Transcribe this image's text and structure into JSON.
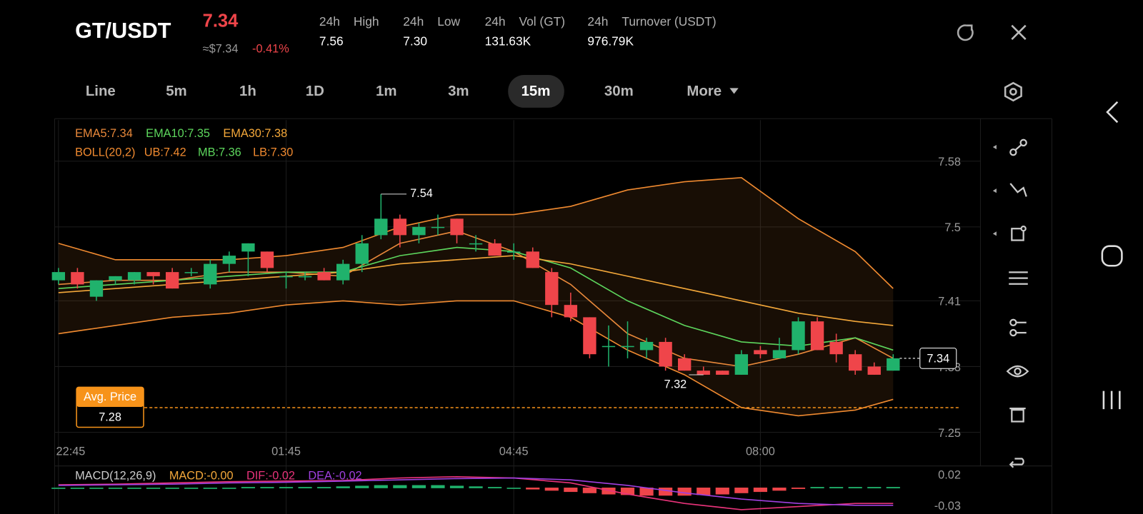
{
  "header": {
    "pair": "GT/USDT",
    "price": "7.34",
    "usd_price": "≈$7.34",
    "change": "-0.41%",
    "stats": [
      {
        "period": "24h",
        "label": "High",
        "value": "7.56"
      },
      {
        "period": "24h",
        "label": "Low",
        "value": "7.30"
      },
      {
        "period": "24h",
        "label": "Vol (GT)",
        "value": "131.63K"
      },
      {
        "period": "24h",
        "label": "Turnover (USDT)",
        "value": "976.79K"
      }
    ]
  },
  "timeframes": {
    "items": [
      "Line",
      "5m",
      "1h",
      "1D",
      "1m",
      "3m",
      "15m",
      "30m",
      "More"
    ],
    "active": "15m"
  },
  "chart_data": {
    "type": "candlestick",
    "up_color": "#20b26c",
    "down_color": "#ef454a",
    "ylim": [
      7.24,
      7.63
    ],
    "yticks": [
      7.25,
      7.33,
      7.41,
      7.5,
      7.58
    ],
    "grid": true,
    "xlim": [
      -0.2,
      48.6
    ],
    "xticks": [
      {
        "value": 0,
        "label": "22:45"
      },
      {
        "value": 12,
        "label": "01:45"
      },
      {
        "value": 24,
        "label": "04:45"
      },
      {
        "value": 37,
        "label": "08:00"
      }
    ],
    "candles": [
      [
        7.435,
        7.45,
        7.43,
        7.445
      ],
      [
        7.445,
        7.45,
        7.425,
        7.43
      ],
      [
        7.415,
        7.435,
        7.41,
        7.435
      ],
      [
        7.435,
        7.44,
        7.43,
        7.44
      ],
      [
        7.435,
        7.445,
        7.43,
        7.445
      ],
      [
        7.445,
        7.445,
        7.43,
        7.44
      ],
      [
        7.445,
        7.45,
        7.425,
        7.425
      ],
      [
        7.445,
        7.45,
        7.44,
        7.445
      ],
      [
        7.43,
        7.46,
        7.425,
        7.455
      ],
      [
        7.455,
        7.47,
        7.445,
        7.465
      ],
      [
        7.47,
        7.48,
        7.44,
        7.48
      ],
      [
        7.47,
        7.47,
        7.445,
        7.45
      ],
      [
        7.44,
        7.445,
        7.425,
        7.44
      ],
      [
        7.44,
        7.445,
        7.435,
        7.44
      ],
      [
        7.445,
        7.45,
        7.435,
        7.435
      ],
      [
        7.435,
        7.46,
        7.43,
        7.455
      ],
      [
        7.455,
        7.49,
        7.445,
        7.48
      ],
      [
        7.49,
        7.54,
        7.485,
        7.51
      ],
      [
        7.51,
        7.515,
        7.475,
        7.49
      ],
      [
        7.49,
        7.505,
        7.48,
        7.5
      ],
      [
        7.5,
        7.515,
        7.49,
        7.5
      ],
      [
        7.51,
        7.51,
        7.48,
        7.49
      ],
      [
        7.48,
        7.49,
        7.47,
        7.48
      ],
      [
        7.48,
        7.485,
        7.465,
        7.465
      ],
      [
        7.47,
        7.48,
        7.46,
        7.47
      ],
      [
        7.47,
        7.475,
        7.45,
        7.45
      ],
      [
        7.445,
        7.45,
        7.39,
        7.405
      ],
      [
        7.405,
        7.42,
        7.385,
        7.39
      ],
      [
        7.39,
        7.39,
        7.34,
        7.345
      ],
      [
        7.355,
        7.38,
        7.33,
        7.355
      ],
      [
        7.355,
        7.385,
        7.34,
        7.355
      ],
      [
        7.35,
        7.365,
        7.34,
        7.36
      ],
      [
        7.36,
        7.365,
        7.325,
        7.33
      ],
      [
        7.34,
        7.345,
        7.325,
        7.325
      ],
      [
        7.325,
        7.33,
        7.32,
        7.32
      ],
      [
        7.325,
        7.325,
        7.32,
        7.32
      ],
      [
        7.32,
        7.35,
        7.32,
        7.345
      ],
      [
        7.35,
        7.355,
        7.34,
        7.345
      ],
      [
        7.34,
        7.365,
        7.34,
        7.35
      ],
      [
        7.35,
        7.39,
        7.345,
        7.385
      ],
      [
        7.385,
        7.39,
        7.35,
        7.35
      ],
      [
        7.36,
        7.37,
        7.335,
        7.345
      ],
      [
        7.345,
        7.35,
        7.32,
        7.325
      ],
      [
        7.33,
        7.335,
        7.32,
        7.32
      ],
      [
        7.325,
        7.345,
        7.325,
        7.34
      ]
    ],
    "annotations": [
      {
        "index": 17,
        "value": 7.54
      },
      {
        "index": 34,
        "value": 7.32
      }
    ],
    "last_price": {
      "value": 7.34,
      "color": "#ffffff"
    },
    "avg_price": {
      "label": "Avg. Price",
      "value": 7.28,
      "color": "#f7931a"
    },
    "line_x": [
      0,
      3,
      6,
      9,
      12,
      15,
      18,
      21,
      24,
      27,
      30,
      33,
      36,
      39,
      42,
      44
    ],
    "ema": [
      {
        "name": "EMA5:7.34",
        "color": "#e8883a",
        "values": [
          7.43,
          7.435,
          7.435,
          7.445,
          7.445,
          7.44,
          7.48,
          7.495,
          7.47,
          7.43,
          7.37,
          7.34,
          7.33,
          7.345,
          7.365,
          7.34
        ]
      },
      {
        "name": "EMA10:7.35",
        "color": "#5dd65d",
        "values": [
          7.425,
          7.43,
          7.435,
          7.44,
          7.445,
          7.445,
          7.465,
          7.475,
          7.47,
          7.45,
          7.41,
          7.38,
          7.36,
          7.355,
          7.365,
          7.35
        ]
      },
      {
        "name": "EMA30:7.38",
        "color": "#f4a83a",
        "values": [
          7.42,
          7.425,
          7.43,
          7.435,
          7.44,
          7.445,
          7.455,
          7.46,
          7.465,
          7.455,
          7.44,
          7.425,
          7.41,
          7.395,
          7.385,
          7.38
        ]
      }
    ],
    "boll": {
      "name": "BOLL(20,2)",
      "color": "#f08a30",
      "bands": [
        {
          "name": "UB:7.42",
          "color": "#f08a30",
          "values": [
            7.48,
            7.46,
            7.46,
            7.46,
            7.465,
            7.475,
            7.5,
            7.515,
            7.515,
            7.525,
            7.545,
            7.555,
            7.56,
            7.51,
            7.47,
            7.425
          ]
        },
        {
          "name": "MB:7.36",
          "color": "#5dd65d",
          "values": null
        },
        {
          "name": "LB:7.30",
          "color": "#f08a30",
          "values": [
            7.37,
            7.38,
            7.39,
            7.395,
            7.405,
            7.41,
            7.405,
            7.41,
            7.41,
            7.39,
            7.35,
            7.32,
            7.28,
            7.27,
            7.277,
            7.29
          ]
        }
      ]
    },
    "macd": {
      "name": "MACD(12,26,9)",
      "labels": [
        {
          "name": "MACD:-0.00",
          "color": "#f4a83a"
        },
        {
          "name": "DIF:-0.02",
          "color": "#e8337a"
        },
        {
          "name": "DEA:-0.02",
          "color": "#a040e0"
        }
      ],
      "ylim": [
        -0.042,
        0.033
      ],
      "yticks": [
        0.02,
        -0.03
      ],
      "hist": [
        0,
        0,
        0,
        0,
        0,
        0,
        0,
        0,
        0,
        0,
        0.001,
        0.001,
        0.001,
        0.001,
        0.001,
        0.002,
        0.003,
        0.004,
        0.004,
        0.004,
        0.004,
        0.003,
        0.002,
        0.001,
        0,
        -0.002,
        -0.004,
        -0.006,
        -0.008,
        -0.01,
        -0.011,
        -0.012,
        -0.012,
        -0.012,
        -0.011,
        -0.01,
        -0.008,
        -0.006,
        -0.004,
        -0.001,
        0.001,
        0.001,
        0.001,
        0.001,
        0.001
      ],
      "dif": [
        0.005,
        0.006,
        0.008,
        0.01,
        0.011,
        0.012,
        0.016,
        0.018,
        0.016,
        0.008,
        -0.01,
        -0.025,
        -0.035,
        -0.03,
        -0.025,
        -0.025
      ],
      "dea": [
        0.004,
        0.005,
        0.006,
        0.008,
        0.009,
        0.011,
        0.013,
        0.015,
        0.016,
        0.013,
        0.004,
        -0.008,
        -0.018,
        -0.025,
        -0.028,
        -0.028
      ]
    }
  }
}
